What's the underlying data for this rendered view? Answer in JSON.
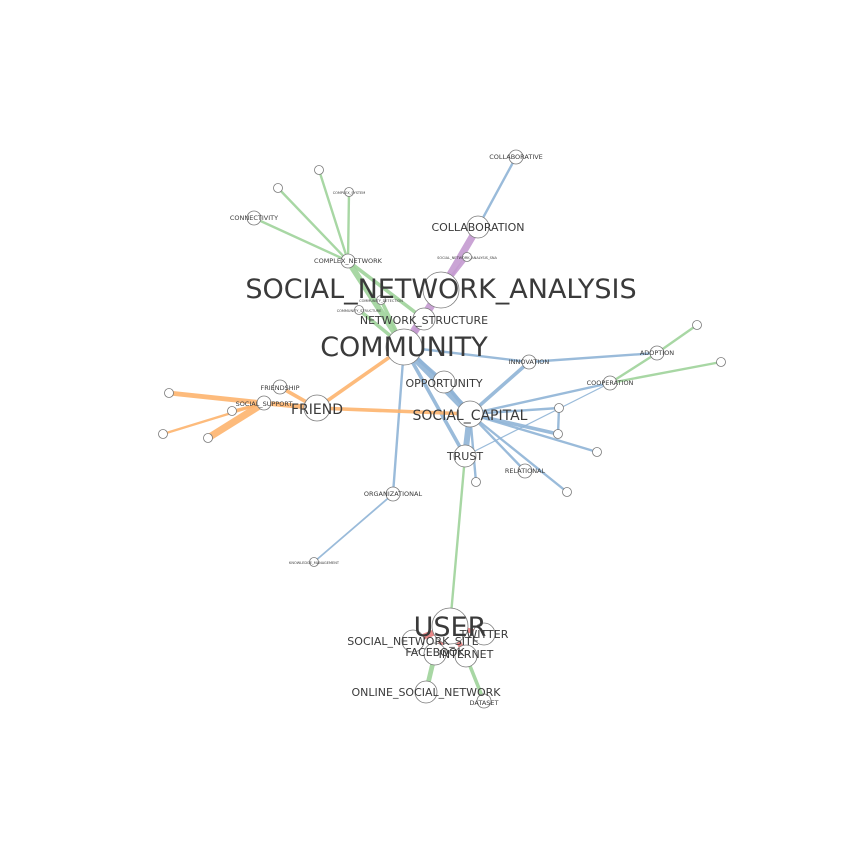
{
  "colors": {
    "blue": "#8fb4d6",
    "green": "#9fd39a",
    "purple": "#c49ad0",
    "orange": "#fdb46e",
    "red": "#e57a7a",
    "node_stroke": "#7a7a7a",
    "label": "#3a3a3a"
  },
  "nodes": [
    {
      "id": "social_network_analysis",
      "label": "SOCIAL_NETWORK_ANALYSIS",
      "size": "xl"
    },
    {
      "id": "community",
      "label": "COMMUNITY",
      "size": "xl"
    },
    {
      "id": "user",
      "label": "USER",
      "size": "xl"
    },
    {
      "id": "collaboration",
      "label": "COLLABORATION",
      "size": "m"
    },
    {
      "id": "collaborative",
      "label": "COLLABORATIVE",
      "size": "s"
    },
    {
      "id": "sna_small",
      "label": "SOCIAL_NETWORK_ANALYSIS_SNA",
      "size": "xs"
    },
    {
      "id": "network_structure",
      "label": "NETWORK_STRUCTURE",
      "size": "m"
    },
    {
      "id": "complex_network",
      "label": "COMPLEX_NETWORK",
      "size": "s"
    },
    {
      "id": "connectivity",
      "label": "CONNECTIVITY",
      "size": "s"
    },
    {
      "id": "complex_system",
      "label": "COMPLEX_SYSTEM",
      "size": "xs"
    },
    {
      "id": "cn_leaf1",
      "label": "",
      "size": "xs"
    },
    {
      "id": "cn_leaf2",
      "label": "",
      "size": "xs"
    },
    {
      "id": "community_detection",
      "label": "COMMUNITY_DETECTION",
      "size": "xs"
    },
    {
      "id": "community_structure",
      "label": "COMMUNITY_STRUCTURE",
      "size": "xs"
    },
    {
      "id": "opportunity",
      "label": "OPPORTUNITY",
      "size": "m"
    },
    {
      "id": "innovation",
      "label": "INNOVATION",
      "size": "s"
    },
    {
      "id": "adoption",
      "label": "ADOPTION",
      "size": "s"
    },
    {
      "id": "cooperation",
      "label": "COOPERATION",
      "size": "s"
    },
    {
      "id": "ad_leaf1",
      "label": "",
      "size": "xs"
    },
    {
      "id": "ad_leaf2",
      "label": "",
      "size": "xs"
    },
    {
      "id": "social_capital",
      "label": "SOCIAL_CAPITAL",
      "size": "l"
    },
    {
      "id": "trust",
      "label": "TRUST",
      "size": "m"
    },
    {
      "id": "friend",
      "label": "FRIEND",
      "size": "l"
    },
    {
      "id": "friendship",
      "label": "FRIENDSHIP",
      "size": "s"
    },
    {
      "id": "social_support",
      "label": "SOCIAL_SUPPORT",
      "size": "s"
    },
    {
      "id": "fr_leaf1",
      "label": "",
      "size": "xs"
    },
    {
      "id": "fr_leaf2",
      "label": "",
      "size": "xs"
    },
    {
      "id": "fr_leaf3",
      "label": "",
      "size": "xs"
    },
    {
      "id": "fr_leaf4",
      "label": "",
      "size": "xs"
    },
    {
      "id": "relational",
      "label": "RELATIONAL",
      "size": "s"
    },
    {
      "id": "sc_leaf1",
      "label": "",
      "size": "xs"
    },
    {
      "id": "sc_leaf2",
      "label": "",
      "size": "xs"
    },
    {
      "id": "sc_leaf3",
      "label": "",
      "size": "xs"
    },
    {
      "id": "sc_leaf4",
      "label": "",
      "size": "xs"
    },
    {
      "id": "sc_leaf5",
      "label": "",
      "size": "xs"
    },
    {
      "id": "organizational",
      "label": "ORGANIZATIONAL",
      "size": "s"
    },
    {
      "id": "knowledge_management",
      "label": "KNOWLEDGE_MANAGEMENT",
      "size": "xs"
    },
    {
      "id": "social_network_site",
      "label": "SOCIAL_NETWORK_SITE",
      "size": "m"
    },
    {
      "id": "twitter",
      "label": "TWITTER",
      "size": "m"
    },
    {
      "id": "facebook",
      "label": "FACEBOOK",
      "size": "m"
    },
    {
      "id": "internet",
      "label": "INTERNET",
      "size": "m"
    },
    {
      "id": "online_social_network",
      "label": "ONLINE_SOCIAL_NETWORK",
      "size": "m"
    },
    {
      "id": "dataset",
      "label": "DATASET",
      "size": "s"
    }
  ],
  "edges": [
    {
      "from": "collaboration",
      "to": "collaborative",
      "cluster": "blue",
      "weight": 2
    },
    {
      "from": "social_network_analysis",
      "to": "collaboration",
      "cluster": "purple",
      "weight": 6
    },
    {
      "from": "social_network_analysis",
      "to": "sna_small",
      "cluster": "purple",
      "weight": 3
    },
    {
      "from": "community",
      "to": "social_network_analysis",
      "cluster": "purple",
      "weight": 7
    },
    {
      "from": "community",
      "to": "network_structure",
      "cluster": "purple",
      "weight": 4
    },
    {
      "from": "complex_network",
      "to": "community",
      "cluster": "green",
      "weight": 5
    },
    {
      "from": "complex_network",
      "to": "connectivity",
      "cluster": "green",
      "weight": 2
    },
    {
      "from": "complex_network",
      "to": "complex_system",
      "cluster": "green",
      "weight": 2
    },
    {
      "from": "complex_network",
      "to": "cn_leaf1",
      "cluster": "green",
      "weight": 2
    },
    {
      "from": "complex_network",
      "to": "cn_leaf2",
      "cluster": "green",
      "weight": 2
    },
    {
      "from": "complex_network",
      "to": "network_structure",
      "cluster": "green",
      "weight": 3
    },
    {
      "from": "community",
      "to": "community_detection",
      "cluster": "green",
      "weight": 3
    },
    {
      "from": "community",
      "to": "community_structure",
      "cluster": "green",
      "weight": 3
    },
    {
      "from": "community",
      "to": "opportunity",
      "cluster": "blue",
      "weight": 3
    },
    {
      "from": "community",
      "to": "social_capital",
      "cluster": "blue",
      "weight": 6
    },
    {
      "from": "community",
      "to": "trust",
      "cluster": "blue",
      "weight": 3
    },
    {
      "from": "community",
      "to": "organizational",
      "cluster": "blue",
      "weight": 2
    },
    {
      "from": "community",
      "to": "innovation",
      "cluster": "blue",
      "weight": 2
    },
    {
      "from": "community",
      "to": "friend",
      "cluster": "orange",
      "weight": 3
    },
    {
      "from": "innovation",
      "to": "adoption",
      "cluster": "blue",
      "weight": 2
    },
    {
      "from": "adoption",
      "to": "cooperation",
      "cluster": "green",
      "weight": 2
    },
    {
      "from": "adoption",
      "to": "ad_leaf1",
      "cluster": "green",
      "weight": 2
    },
    {
      "from": "cooperation",
      "to": "ad_leaf2",
      "cluster": "green",
      "weight": 2
    },
    {
      "from": "social_capital",
      "to": "innovation",
      "cluster": "blue",
      "weight": 3
    },
    {
      "from": "social_capital",
      "to": "cooperation",
      "cluster": "blue",
      "weight": 2
    },
    {
      "from": "social_capital",
      "to": "trust",
      "cluster": "blue",
      "weight": 5
    },
    {
      "from": "social_capital",
      "to": "opportunity",
      "cluster": "blue",
      "weight": 3
    },
    {
      "from": "social_capital",
      "to": "sc_leaf1",
      "cluster": "blue",
      "weight": 2
    },
    {
      "from": "social_capital",
      "to": "sc_leaf2",
      "cluster": "blue",
      "weight": 3
    },
    {
      "from": "sc_leaf1",
      "to": "sc_leaf2",
      "cluster": "blue",
      "weight": 2
    },
    {
      "from": "social_capital",
      "to": "sc_leaf3",
      "cluster": "blue",
      "weight": 2
    },
    {
      "from": "social_capital",
      "to": "relational",
      "cluster": "blue",
      "weight": 2
    },
    {
      "from": "social_capital",
      "to": "sc_leaf4",
      "cluster": "blue",
      "weight": 2
    },
    {
      "from": "social_capital",
      "to": "sc_leaf5",
      "cluster": "blue",
      "weight": 2
    },
    {
      "from": "trust",
      "to": "cooperation",
      "cluster": "blue",
      "weight": 1
    },
    {
      "from": "social_capital",
      "to": "friend",
      "cluster": "orange",
      "weight": 3
    },
    {
      "from": "friend",
      "to": "friendship",
      "cluster": "orange",
      "weight": 3
    },
    {
      "from": "friend",
      "to": "social_support",
      "cluster": "orange",
      "weight": 4
    },
    {
      "from": "social_support",
      "to": "fr_leaf1",
      "cluster": "orange",
      "weight": 4
    },
    {
      "from": "social_support",
      "to": "fr_leaf2",
      "cluster": "orange",
      "weight": 2
    },
    {
      "from": "social_support",
      "to": "fr_leaf3",
      "cluster": "orange",
      "weight": 2
    },
    {
      "from": "social_support",
      "to": "fr_leaf4",
      "cluster": "orange",
      "weight": 6
    },
    {
      "from": "organizational",
      "to": "knowledge_management",
      "cluster": "blue",
      "weight": 1.5
    },
    {
      "from": "trust",
      "to": "user",
      "cluster": "green",
      "weight": 2
    },
    {
      "from": "user",
      "to": "social_network_site",
      "cluster": "red",
      "weight": 5
    },
    {
      "from": "user",
      "to": "twitter",
      "cluster": "red",
      "weight": 4
    },
    {
      "from": "user",
      "to": "facebook",
      "cluster": "red",
      "weight": 4
    },
    {
      "from": "user",
      "to": "internet",
      "cluster": "red",
      "weight": 4
    },
    {
      "from": "facebook",
      "to": "online_social_network",
      "cluster": "green",
      "weight": 4
    },
    {
      "from": "internet",
      "to": "dataset",
      "cluster": "green",
      "weight": 3
    }
  ]
}
